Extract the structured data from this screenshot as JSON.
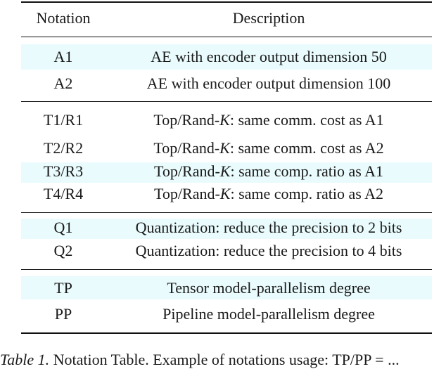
{
  "table": {
    "header": {
      "notation": "Notation",
      "description": "Description"
    },
    "groups": [
      {
        "rows": [
          {
            "notation": "A1",
            "description": "AE with encoder output dimension 50",
            "shaded": true
          },
          {
            "notation": "A2",
            "description": "AE with encoder output dimension 100",
            "shaded": false
          }
        ]
      },
      {
        "rows": [
          {
            "notation": "T1/R1",
            "prefix": "Top/Rand-",
            "k": "K",
            "suffix": ": same comm. cost as A1",
            "shaded": false
          },
          {
            "notation": "T2/R2",
            "prefix": "Top/Rand-",
            "k": "K",
            "suffix": ": same comm. cost as A2",
            "shaded": false
          },
          {
            "notation": "T3/R3",
            "prefix": "Top/Rand-",
            "k": "K",
            "suffix": ": same comp. ratio as A1",
            "shaded": true
          },
          {
            "notation": "T4/R4",
            "prefix": "Top/Rand-",
            "k": "K",
            "suffix": ": same comp. ratio as A2",
            "shaded": false
          }
        ]
      },
      {
        "rows": [
          {
            "notation": "Q1",
            "description": "Quantization: reduce the precision to 2 bits",
            "shaded": true
          },
          {
            "notation": "Q2",
            "description": "Quantization: reduce the precision to 4 bits",
            "shaded": false
          }
        ]
      },
      {
        "rows": [
          {
            "notation": "TP",
            "description": "Tensor model-parallelism degree",
            "shaded": true
          },
          {
            "notation": "PP",
            "description": "Pipeline model-parallelism degree",
            "shaded": false
          }
        ]
      }
    ]
  },
  "caption": {
    "label": "Table 1.",
    "text": " Notation Table. Example of notations usage: TP/PP = ..."
  }
}
